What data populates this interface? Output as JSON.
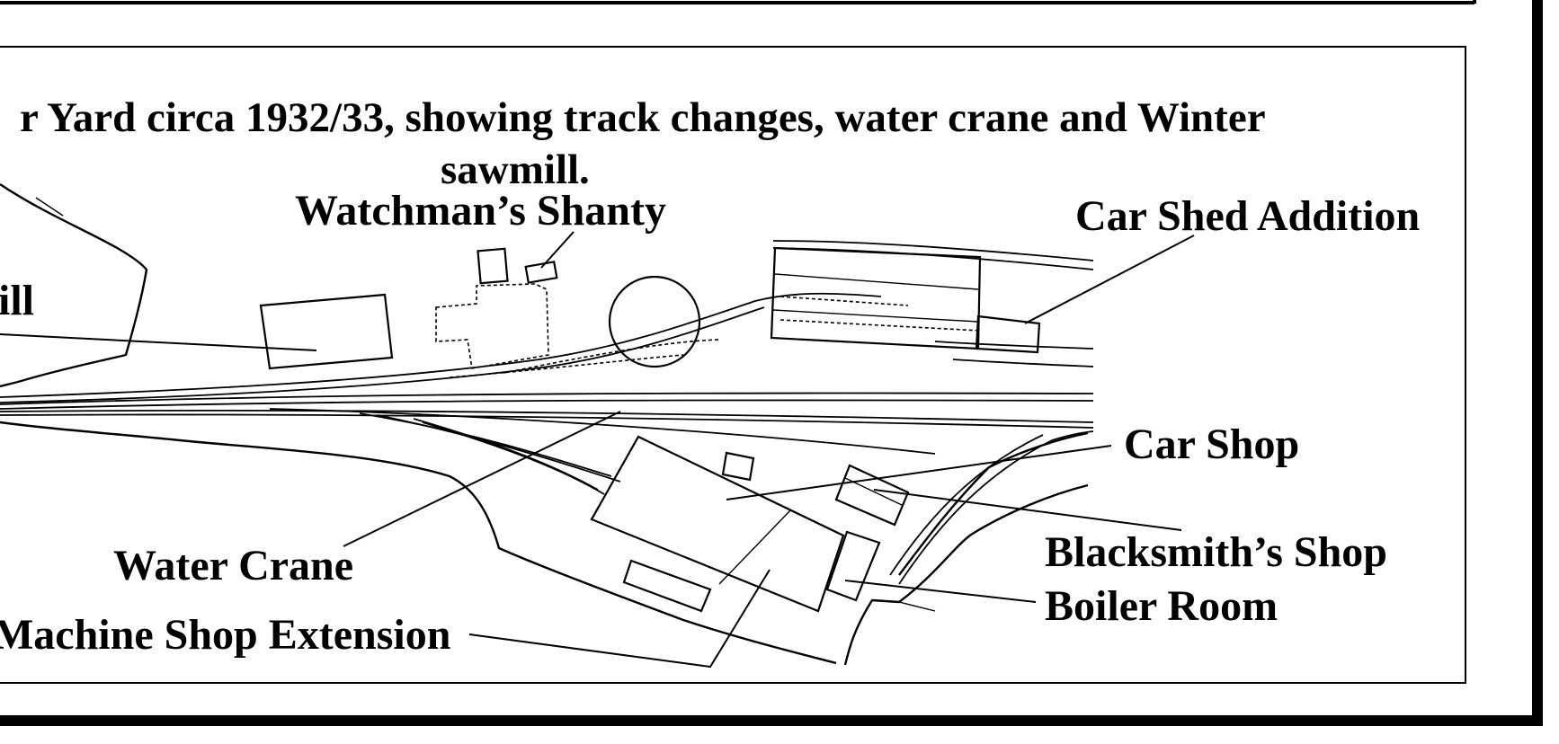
{
  "title": {
    "line1": "r Yard circa 1932/33, showing track changes, water crane and Winter",
    "line2": "sawmill."
  },
  "labels": {
    "watchmans_shanty": "Watchman’s Shanty",
    "car_shed_addition": "Car Shed Addition",
    "ill_fragment": "ill",
    "car_shop": "Car Shop",
    "water_crane": "Water Crane",
    "blacksmiths_shop": "Blacksmith’s Shop",
    "boiler_room": "Boiler Room",
    "machine_shop_extension": "Machine Shop Extension"
  },
  "colors": {
    "ink": "#000000",
    "paper": "#ffffff"
  }
}
